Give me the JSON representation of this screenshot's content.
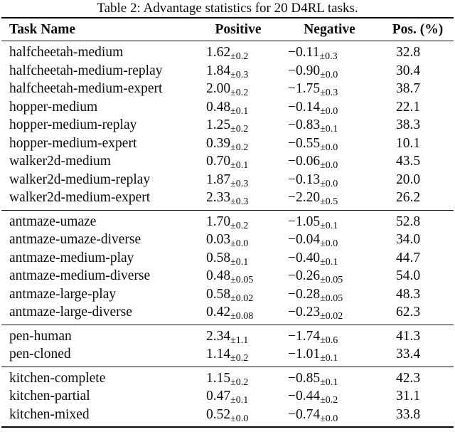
{
  "caption": "Table 2: Advantage statistics for 20 D4RL tasks.",
  "columns": [
    "Task Name",
    "Positive",
    "Negative",
    "Pos. (%)"
  ],
  "sections": [
    {
      "rows": [
        {
          "task": "halfcheetah-medium",
          "positive": "1.62",
          "positive_std": "±0.2",
          "negative": "−0.11",
          "negative_std": "±0.3",
          "pos_pct": "32.8"
        },
        {
          "task": "halfcheetah-medium-replay",
          "positive": "1.84",
          "positive_std": "±0.3",
          "negative": "−0.90",
          "negative_std": "±0.0",
          "pos_pct": "30.4"
        },
        {
          "task": "halfcheetah-medium-expert",
          "positive": "2.00",
          "positive_std": "±0.2",
          "negative": "−1.75",
          "negative_std": "±0.3",
          "pos_pct": "38.7"
        },
        {
          "task": "hopper-medium",
          "positive": "0.48",
          "positive_std": "±0.1",
          "negative": "−0.14",
          "negative_std": "±0.0",
          "pos_pct": "22.1"
        },
        {
          "task": "hopper-medium-replay",
          "positive": "1.25",
          "positive_std": "±0.2",
          "negative": "−0.83",
          "negative_std": "±0.1",
          "pos_pct": "38.3"
        },
        {
          "task": "hopper-medium-expert",
          "positive": "0.39",
          "positive_std": "±0.2",
          "negative": "−0.55",
          "negative_std": "±0.0",
          "pos_pct": "10.1"
        },
        {
          "task": "walker2d-medium",
          "positive": "0.70",
          "positive_std": "±0.1",
          "negative": "−0.06",
          "negative_std": "±0.0",
          "pos_pct": "43.5"
        },
        {
          "task": "walker2d-medium-replay",
          "positive": "1.87",
          "positive_std": "±0.3",
          "negative": "−0.13",
          "negative_std": "±0.0",
          "pos_pct": "20.0"
        },
        {
          "task": "walker2d-medium-expert",
          "positive": "2.33",
          "positive_std": "±0.3",
          "negative": "−2.20",
          "negative_std": "±0.5",
          "pos_pct": "26.2"
        }
      ]
    },
    {
      "rows": [
        {
          "task": "antmaze-umaze",
          "positive": "1.70",
          "positive_std": "±0.2",
          "negative": "−1.05",
          "negative_std": "±0.1",
          "pos_pct": "52.8"
        },
        {
          "task": "antmaze-umaze-diverse",
          "positive": "0.03",
          "positive_std": "±0.0",
          "negative": "−0.04",
          "negative_std": "±0.0",
          "pos_pct": "34.0"
        },
        {
          "task": "antmaze-medium-play",
          "positive": "0.58",
          "positive_std": "±0.1",
          "negative": "−0.40",
          "negative_std": "±0.1",
          "pos_pct": "44.7"
        },
        {
          "task": "antmaze-medium-diverse",
          "positive": "0.48",
          "positive_std": "±0.05",
          "negative": "−0.26",
          "negative_std": "±0.05",
          "pos_pct": "54.0"
        },
        {
          "task": "antmaze-large-play",
          "positive": "0.58",
          "positive_std": "±0.02",
          "negative": "−0.28",
          "negative_std": "±0.05",
          "pos_pct": "48.3"
        },
        {
          "task": "antmaze-large-diverse",
          "positive": "0.42",
          "positive_std": "±0.08",
          "negative": "−0.23",
          "negative_std": "±0.02",
          "pos_pct": "62.3"
        }
      ]
    },
    {
      "rows": [
        {
          "task": "pen-human",
          "positive": "2.34",
          "positive_std": "±1.1",
          "negative": "−1.74",
          "negative_std": "±0.6",
          "pos_pct": "41.3"
        },
        {
          "task": "pen-cloned",
          "positive": "1.14",
          "positive_std": "±0.2",
          "negative": "−1.01",
          "negative_std": "±0.1",
          "pos_pct": "33.4"
        }
      ]
    },
    {
      "rows": [
        {
          "task": "kitchen-complete",
          "positive": "1.15",
          "positive_std": "±0.2",
          "negative": "−0.85",
          "negative_std": "±0.1",
          "pos_pct": "42.3"
        },
        {
          "task": "kitchen-partial",
          "positive": "0.47",
          "positive_std": "±0.1",
          "negative": "−0.44",
          "negative_std": "±0.2",
          "pos_pct": "31.1"
        },
        {
          "task": "kitchen-mixed",
          "positive": "0.52",
          "positive_std": "±0.0",
          "negative": "−0.74",
          "negative_std": "±0.0",
          "pos_pct": "33.8"
        }
      ]
    }
  ]
}
